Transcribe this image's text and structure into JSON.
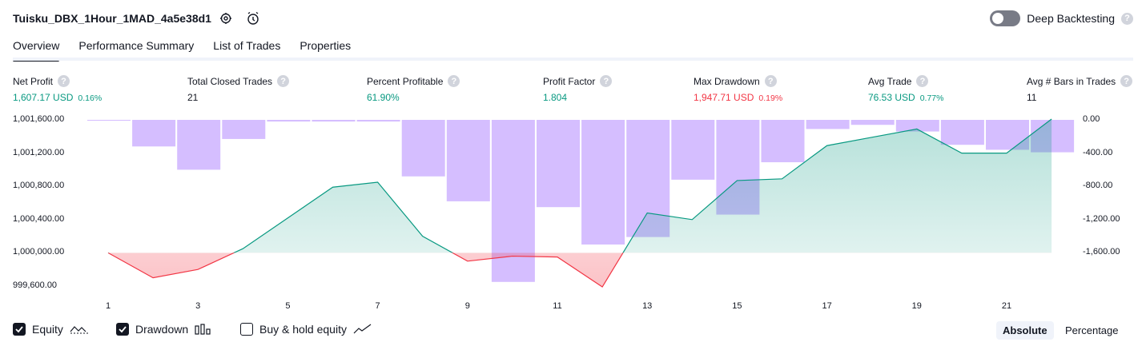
{
  "header": {
    "strategy_name": "Tuisku_DBX_1Hour_1MAD_4a5e38d1",
    "settings_icon": "gear-icon",
    "alert_icon": "add-alert-icon",
    "deep_backtesting_label": "Deep Backtesting",
    "deep_backtesting_on": false,
    "help_glyph": "?"
  },
  "tabs": [
    {
      "label": "Overview",
      "active": true
    },
    {
      "label": "Performance Summary",
      "active": false
    },
    {
      "label": "List of Trades",
      "active": false
    },
    {
      "label": "Properties",
      "active": false
    }
  ],
  "metrics": [
    {
      "label": "Net Profit",
      "value": "1,607.17 USD",
      "sub": "0.16%",
      "color": "#089981"
    },
    {
      "label": "Total Closed Trades",
      "value": "21",
      "sub": "",
      "color": "#131722"
    },
    {
      "label": "Percent Profitable",
      "value": "61.90%",
      "sub": "",
      "color": "#089981"
    },
    {
      "label": "Profit Factor",
      "value": "1.804",
      "sub": "",
      "color": "#089981"
    },
    {
      "label": "Max Drawdown",
      "value": "1,947.71 USD",
      "sub": "0.19%",
      "color": "#f23645"
    },
    {
      "label": "Avg Trade",
      "value": "76.53 USD",
      "sub": "0.77%",
      "color": "#089981"
    },
    {
      "label": "Avg # Bars in Trades",
      "value": "11",
      "sub": "",
      "color": "#131722"
    }
  ],
  "chart_data": {
    "type": "line",
    "equity_baseline": 1000000,
    "left_axis_ticks": [
      "1,001,600.00",
      "1,001,200.00",
      "1,000,800.00",
      "1,000,400.00",
      "1,000,000.00",
      "999,600.00"
    ],
    "left_axis_values": [
      1001600,
      1001200,
      1000800,
      1000400,
      1000000,
      999600
    ],
    "right_axis_ticks": [
      "0.00",
      "-400.00",
      "-800.00",
      "-1,200.00",
      "-1,600.00"
    ],
    "right_axis_values": [
      0,
      -400,
      -800,
      -1200,
      -1600
    ],
    "x_ticks": [
      "1",
      "3",
      "5",
      "7",
      "9",
      "11",
      "13",
      "15",
      "17",
      "19",
      "21"
    ],
    "x_tick_values": [
      1,
      3,
      5,
      7,
      9,
      11,
      13,
      15,
      17,
      19,
      21
    ],
    "series": [
      {
        "name": "Equity",
        "x": [
          1,
          2,
          3,
          4,
          5,
          6,
          7,
          8,
          9,
          10,
          11,
          12,
          13,
          14,
          15,
          16,
          17,
          18,
          19,
          20,
          21,
          22
        ],
        "values": [
          1000000,
          999700,
          999800,
          1000050,
          1000420,
          1000790,
          1000850,
          1000200,
          999900,
          999960,
          999950,
          999590,
          1000480,
          1000400,
          1000870,
          1000890,
          1001290,
          1001390,
          1001490,
          1001200,
          1001200,
          1001610
        ]
      },
      {
        "name": "Drawdown",
        "x": [
          1,
          2,
          3,
          4,
          5,
          6,
          7,
          8,
          9,
          10,
          11,
          12,
          13,
          14,
          15,
          16,
          17,
          18,
          19,
          20,
          21,
          22
        ],
        "values": [
          -10,
          -320,
          -600,
          -230,
          -20,
          -20,
          -20,
          -680,
          -980,
          -1950,
          -1050,
          -1500,
          -1410,
          -720,
          -1140,
          -510,
          -110,
          -60,
          -140,
          -300,
          -360,
          -390
        ]
      }
    ],
    "colors": {
      "equity_up": "#089981",
      "equity_down": "#f23645",
      "drawdown": "#b388ff",
      "benchmark": "#2962ff"
    }
  },
  "legend": [
    {
      "label": "Equity",
      "checked": true,
      "icon": "equity-line-icon"
    },
    {
      "label": "Drawdown",
      "checked": true,
      "icon": "drawdown-bars-icon"
    },
    {
      "label": "Buy & hold equity",
      "checked": false,
      "icon": "buy-hold-line-icon"
    }
  ],
  "view_mode": {
    "options": [
      "Absolute",
      "Percentage"
    ],
    "selected": "Absolute"
  }
}
